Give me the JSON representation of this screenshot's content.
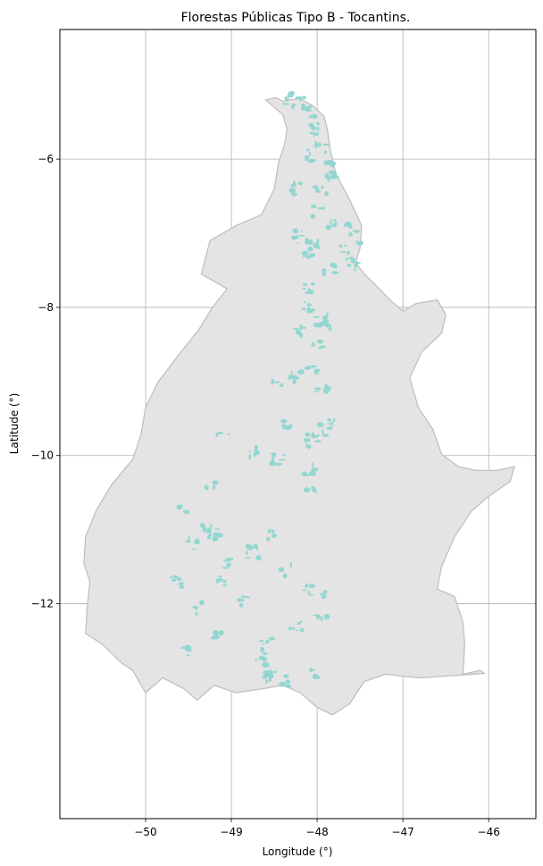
{
  "chart_data": {
    "type": "map",
    "title": "Florestas Públicas Tipo B - Tocantins.",
    "xlabel": "Longitude (°)",
    "ylabel": "Latitude (°)",
    "xlim": [
      -51.0,
      -45.45
    ],
    "ylim": [
      -14.9,
      -4.25
    ],
    "x_ticks": [
      -50,
      -49,
      -48,
      -47,
      -46
    ],
    "x_tick_labels": [
      "−50",
      "−49",
      "−48",
      "−47",
      "−46"
    ],
    "y_ticks": [
      -6,
      -8,
      -10,
      -12
    ],
    "y_tick_labels": [
      "−6",
      "−8",
      "−10",
      "−12"
    ],
    "grid": true,
    "state_fill_color": "#e4e4e4",
    "state_edge_color": "#bdbdbd",
    "forest_color": "#8fd6d0",
    "state_outline": [
      [
        -48.6,
        -5.2
      ],
      [
        -48.48,
        -5.17
      ],
      [
        -48.4,
        -5.22
      ],
      [
        -48.2,
        -5.18
      ],
      [
        -48.05,
        -5.28
      ],
      [
        -47.92,
        -5.42
      ],
      [
        -47.88,
        -5.6
      ],
      [
        -47.85,
        -5.85
      ],
      [
        -47.78,
        -6.2
      ],
      [
        -47.62,
        -6.55
      ],
      [
        -47.48,
        -6.9
      ],
      [
        -47.5,
        -7.2
      ],
      [
        -47.55,
        -7.4
      ],
      [
        -47.45,
        -7.55
      ],
      [
        -47.3,
        -7.72
      ],
      [
        -47.15,
        -7.9
      ],
      [
        -47.0,
        -8.05
      ],
      [
        -46.85,
        -7.95
      ],
      [
        -46.6,
        -7.9
      ],
      [
        -46.5,
        -8.1
      ],
      [
        -46.55,
        -8.35
      ],
      [
        -46.78,
        -8.6
      ],
      [
        -46.92,
        -8.95
      ],
      [
        -46.82,
        -9.35
      ],
      [
        -46.65,
        -9.65
      ],
      [
        -46.55,
        -9.98
      ],
      [
        -46.35,
        -10.15
      ],
      [
        -46.15,
        -10.2
      ],
      [
        -45.9,
        -10.2
      ],
      [
        -45.7,
        -10.15
      ],
      [
        -45.75,
        -10.35
      ],
      [
        -46.0,
        -10.55
      ],
      [
        -46.2,
        -10.75
      ],
      [
        -46.4,
        -11.1
      ],
      [
        -46.55,
        -11.5
      ],
      [
        -46.6,
        -11.8
      ],
      [
        -46.4,
        -11.9
      ],
      [
        -46.3,
        -12.25
      ],
      [
        -46.28,
        -12.55
      ],
      [
        -46.3,
        -12.95
      ],
      [
        -46.1,
        -12.9
      ],
      [
        -46.05,
        -12.94
      ],
      [
        -46.8,
        -13.0
      ],
      [
        -47.0,
        -12.98
      ],
      [
        -47.2,
        -12.95
      ],
      [
        -47.45,
        -13.05
      ],
      [
        -47.62,
        -13.35
      ],
      [
        -47.82,
        -13.5
      ],
      [
        -48.0,
        -13.4
      ],
      [
        -48.2,
        -13.2
      ],
      [
        -48.4,
        -13.1
      ],
      [
        -48.65,
        -13.15
      ],
      [
        -48.95,
        -13.2
      ],
      [
        -49.2,
        -13.1
      ],
      [
        -49.4,
        -13.3
      ],
      [
        -49.55,
        -13.15
      ],
      [
        -49.8,
        -13.0
      ],
      [
        -50.0,
        -13.2
      ],
      [
        -50.15,
        -12.9
      ],
      [
        -50.28,
        -12.8
      ],
      [
        -50.5,
        -12.55
      ],
      [
        -50.7,
        -12.4
      ],
      [
        -50.68,
        -12.05
      ],
      [
        -50.65,
        -11.7
      ],
      [
        -50.72,
        -11.45
      ],
      [
        -50.7,
        -11.1
      ],
      [
        -50.58,
        -10.75
      ],
      [
        -50.4,
        -10.4
      ],
      [
        -50.15,
        -10.05
      ],
      [
        -50.05,
        -9.7
      ],
      [
        -50.0,
        -9.35
      ],
      [
        -49.85,
        -9.0
      ],
      [
        -49.62,
        -8.65
      ],
      [
        -49.38,
        -8.3
      ],
      [
        -49.22,
        -8.0
      ],
      [
        -49.05,
        -7.75
      ],
      [
        -49.35,
        -7.55
      ],
      [
        -49.25,
        -7.1
      ],
      [
        -48.95,
        -6.9
      ],
      [
        -48.65,
        -6.75
      ],
      [
        -48.5,
        -6.4
      ],
      [
        -48.45,
        -6.05
      ],
      [
        -48.38,
        -5.8
      ],
      [
        -48.35,
        -5.6
      ],
      [
        -48.4,
        -5.4
      ],
      [
        -48.6,
        -5.2
      ]
    ],
    "forest_patches": [
      [
        -48.3,
        -5.18
      ],
      [
        -48.22,
        -5.22
      ],
      [
        -48.1,
        -5.35
      ],
      [
        -48.0,
        -5.6
      ],
      [
        -47.95,
        -5.85
      ],
      [
        -48.05,
        -5.95
      ],
      [
        -47.88,
        -6.05
      ],
      [
        -47.82,
        -6.25
      ],
      [
        -47.95,
        -6.45
      ],
      [
        -48.25,
        -6.4
      ],
      [
        -48.0,
        -6.7
      ],
      [
        -47.85,
        -6.85
      ],
      [
        -47.62,
        -6.9
      ],
      [
        -47.55,
        -7.05
      ],
      [
        -47.7,
        -7.25
      ],
      [
        -47.6,
        -7.38
      ],
      [
        -47.55,
        -7.45
      ],
      [
        -47.85,
        -7.5
      ],
      [
        -48.1,
        -7.35
      ],
      [
        -48.2,
        -7.05
      ],
      [
        -48.05,
        -7.15
      ],
      [
        -48.12,
        -7.75
      ],
      [
        -48.1,
        -8.0
      ],
      [
        -47.95,
        -8.18
      ],
      [
        -47.85,
        -8.25
      ],
      [
        -48.2,
        -8.35
      ],
      [
        -48.0,
        -8.5
      ],
      [
        -48.05,
        -8.85
      ],
      [
        -48.25,
        -8.95
      ],
      [
        -48.45,
        -9.05
      ],
      [
        -47.95,
        -9.1
      ],
      [
        -47.85,
        -9.5
      ],
      [
        -47.9,
        -9.65
      ],
      [
        -48.35,
        -9.55
      ],
      [
        -48.05,
        -9.8
      ],
      [
        -48.1,
        -10.2
      ],
      [
        -48.05,
        -10.45
      ],
      [
        -48.45,
        -10.05
      ],
      [
        -48.75,
        -9.95
      ],
      [
        -49.1,
        -9.75
      ],
      [
        -49.25,
        -10.35
      ],
      [
        -49.55,
        -10.75
      ],
      [
        -49.3,
        -10.95
      ],
      [
        -49.2,
        -11.05
      ],
      [
        -49.45,
        -11.2
      ],
      [
        -49.0,
        -11.45
      ],
      [
        -48.75,
        -11.3
      ],
      [
        -48.55,
        -11.05
      ],
      [
        -48.35,
        -11.55
      ],
      [
        -48.85,
        -11.95
      ],
      [
        -49.15,
        -11.7
      ],
      [
        -49.65,
        -11.7
      ],
      [
        -49.4,
        -12.05
      ],
      [
        -48.1,
        -11.8
      ],
      [
        -47.95,
        -11.85
      ],
      [
        -48.6,
        -12.55
      ],
      [
        -48.55,
        -12.9
      ],
      [
        -48.35,
        -13.05
      ],
      [
        -48.0,
        -12.95
      ],
      [
        -48.55,
        -13.0
      ],
      [
        -48.65,
        -12.7
      ],
      [
        -49.15,
        -12.4
      ],
      [
        -49.55,
        -12.65
      ],
      [
        -47.95,
        -12.15
      ],
      [
        -48.25,
        -12.3
      ]
    ]
  }
}
